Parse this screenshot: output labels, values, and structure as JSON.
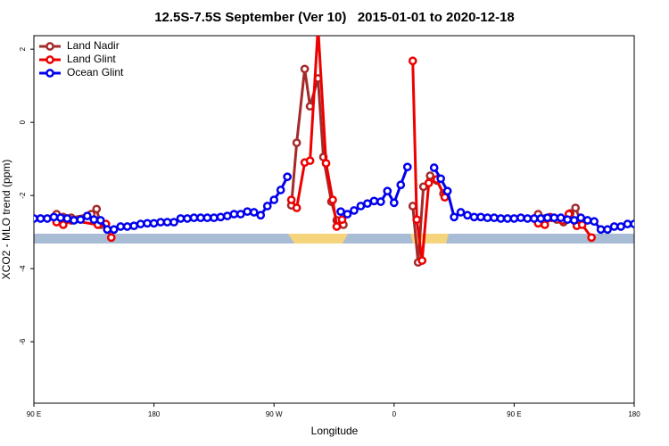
{
  "chart_data": {
    "type": "line",
    "title": "12.5S-7.5S September (Ver 10)   2015-01-01 to 2020-12-18",
    "xlabel": "Longitude",
    "ylabel": "XCO2 - MLO trend (ppm)",
    "xlim": [
      90,
      540
    ],
    "ylim": [
      -7.68,
      2.37
    ],
    "xticks": [
      {
        "value": 90,
        "label": "90 E"
      },
      {
        "value": 180,
        "label": "180"
      },
      {
        "value": 270,
        "label": "90 W"
      },
      {
        "value": 360,
        "label": "0"
      },
      {
        "value": 450,
        "label": "90 E"
      },
      {
        "value": 540,
        "label": "180"
      }
    ],
    "yticks": [
      2,
      0,
      -2,
      -4,
      -6
    ],
    "legend": "top-left",
    "series": [
      {
        "name": "Land Nadir",
        "color": "#a52a2a",
        "x": [
          107,
          112,
          118,
          133,
          137,
          140,
          200,
          283,
          287,
          293,
          297,
          303,
          307,
          313,
          317,
          322,
          350,
          374,
          378,
          382,
          387,
          392,
          397,
          430,
          468,
          473,
          477,
          482,
          487,
          492,
          496,
          500
        ],
        "values": [
          -2.51,
          -2.59,
          -2.61,
          -2.51,
          -2.37,
          -2.8,
          null,
          -2.27,
          -0.56,
          1.46,
          0.44,
          1.2,
          -0.95,
          -2.17,
          -2.68,
          -2.8,
          null,
          -2.29,
          -3.83,
          -1.76,
          -1.46,
          -1.59,
          -1.95,
          null,
          -2.51,
          -2.63,
          -2.59,
          -2.66,
          -2.73,
          -2.49,
          -2.34,
          -2.71
        ]
      },
      {
        "name": "Land Glint",
        "color": "#ee0000",
        "x": [
          107,
          112,
          118,
          138,
          144,
          148,
          200,
          283,
          287,
          293,
          297,
          303,
          309,
          314,
          317,
          321,
          350,
          374,
          377,
          381,
          386,
          392,
          398,
          430,
          468,
          473,
          478,
          486,
          491,
          497,
          501,
          508
        ],
        "values": [
          -2.73,
          -2.8,
          -2.68,
          -2.8,
          -2.78,
          -3.15,
          null,
          -2.12,
          -2.34,
          -1.1,
          -1.05,
          2.6,
          -1.12,
          -2.12,
          -2.85,
          -2.66,
          null,
          1.68,
          -2.66,
          -3.78,
          -1.66,
          -1.56,
          -2.05,
          null,
          -2.76,
          -2.8,
          -2.61,
          -2.68,
          -2.51,
          -2.83,
          -2.8,
          -3.15
        ]
      },
      {
        "name": "Ocean Glint",
        "color": "#0000ee",
        "x": [
          90,
          95,
          100,
          105,
          110,
          115,
          120,
          125,
          130,
          135,
          140,
          145,
          150,
          155,
          160,
          165,
          170,
          175,
          180,
          185,
          190,
          195,
          200,
          205,
          210,
          215,
          220,
          225,
          230,
          235,
          240,
          245,
          250,
          255,
          260,
          265,
          270,
          275,
          280,
          285,
          290,
          295,
          300,
          305,
          310,
          315,
          320,
          325,
          330,
          335,
          340,
          345,
          350,
          355,
          360,
          365,
          370,
          375,
          380,
          385,
          390,
          395,
          400,
          405,
          410,
          415,
          420,
          425,
          430,
          435,
          440,
          445,
          450,
          455,
          460,
          465,
          470,
          475,
          480,
          485,
          490,
          495,
          500,
          505,
          510,
          515,
          520,
          525,
          530,
          535,
          540
        ],
        "values": [
          -2.63,
          -2.63,
          -2.63,
          -2.59,
          -2.61,
          -2.63,
          -2.68,
          -2.66,
          -2.56,
          -2.66,
          -2.68,
          -2.93,
          -2.93,
          -2.85,
          -2.85,
          -2.83,
          -2.78,
          -2.76,
          -2.76,
          -2.73,
          -2.73,
          -2.73,
          -2.63,
          -2.63,
          -2.61,
          -2.61,
          -2.61,
          -2.61,
          -2.59,
          -2.56,
          -2.51,
          -2.51,
          -2.44,
          -2.46,
          -2.54,
          -2.29,
          -2.12,
          -1.85,
          -1.49,
          null,
          null,
          null,
          null,
          null,
          null,
          null,
          -2.44,
          -2.51,
          -2.41,
          -2.29,
          -2.22,
          -2.15,
          -2.17,
          -1.88,
          -2.2,
          -1.71,
          -1.22,
          null,
          null,
          null,
          -1.24,
          -1.54,
          -1.88,
          -2.59,
          -2.46,
          -2.54,
          -2.59,
          -2.59,
          -2.61,
          -2.61,
          -2.63,
          -2.63,
          -2.63,
          -2.61,
          -2.63,
          -2.63,
          -2.63,
          -2.61,
          -2.61,
          -2.61,
          -2.66,
          -2.68,
          -2.61,
          -2.68,
          -2.71,
          -2.93,
          -2.93,
          -2.85,
          -2.85,
          -2.78,
          -2.78
        ]
      }
    ]
  }
}
